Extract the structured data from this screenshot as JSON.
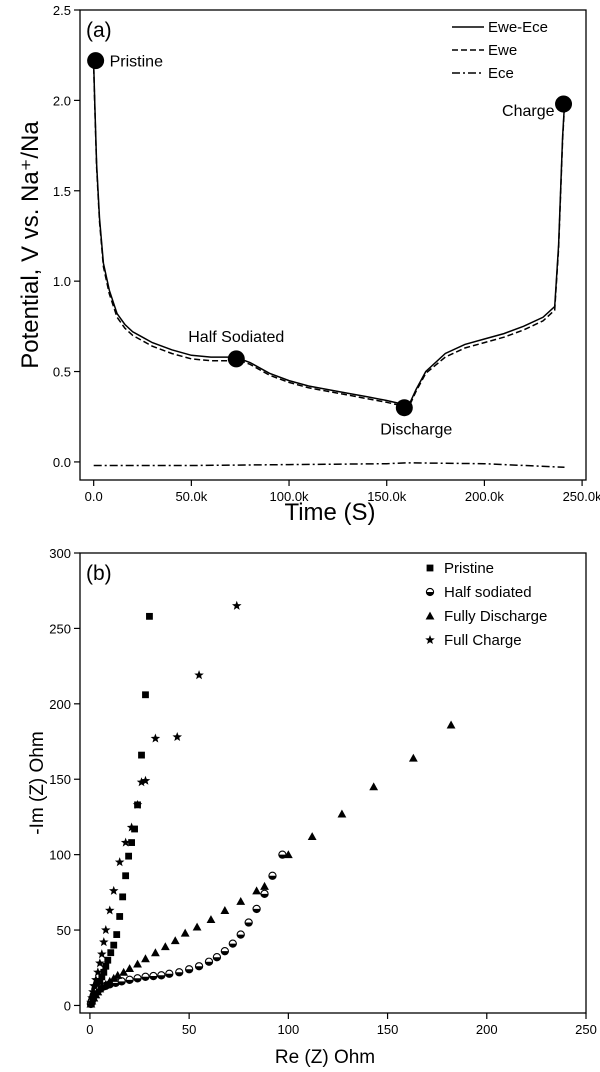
{
  "chart_data": [
    {
      "type": "line",
      "panel_label": "(a)",
      "xlabel": "Time  (S)",
      "ylabel": "Potential, V vs. Na⁺/Na",
      "xlim": [
        -7000,
        252000
      ],
      "ylim": [
        -0.1,
        2.5
      ],
      "xticks": [
        0,
        50000,
        100000,
        150000,
        200000,
        250000
      ],
      "xtick_labels": [
        "0.0",
        "50.0k",
        "100.0k",
        "150.0k",
        "200.0k",
        "250.0k"
      ],
      "yticks": [
        0.0,
        0.5,
        1.0,
        1.5,
        2.0,
        2.5
      ],
      "ytick_labels": [
        "0.0",
        "0.5",
        "1.0",
        "1.5",
        "2.0",
        "2.5"
      ],
      "legend_position": "top-right",
      "series": [
        {
          "name": "Ewe-Ece",
          "style": "solid",
          "x": [
            0,
            500,
            1500,
            3000,
            5000,
            8000,
            12000,
            16000,
            20000,
            25000,
            30000,
            40000,
            50000,
            60000,
            70000,
            75000,
            80000,
            90000,
            100000,
            110000,
            120000,
            130000,
            140000,
            150000,
            158000,
            160000,
            162000,
            165000,
            170000,
            180000,
            190000,
            200000,
            210000,
            220000,
            230000,
            236000,
            238000,
            239000,
            240000,
            241000
          ],
          "y": [
            2.2,
            2.0,
            1.65,
            1.35,
            1.1,
            0.95,
            0.82,
            0.76,
            0.72,
            0.69,
            0.66,
            0.62,
            0.59,
            0.58,
            0.58,
            0.57,
            0.55,
            0.49,
            0.45,
            0.42,
            0.4,
            0.38,
            0.36,
            0.34,
            0.32,
            0.31,
            0.33,
            0.4,
            0.5,
            0.6,
            0.65,
            0.68,
            0.71,
            0.75,
            0.8,
            0.86,
            1.2,
            1.5,
            1.8,
            1.98
          ]
        },
        {
          "name": "Ewe",
          "style": "dashed",
          "x": [
            0,
            500,
            1500,
            3000,
            5000,
            8000,
            12000,
            16000,
            20000,
            25000,
            30000,
            40000,
            50000,
            60000,
            70000,
            75000,
            80000,
            90000,
            100000,
            110000,
            120000,
            130000,
            140000,
            150000,
            158000,
            160000,
            162000,
            165000,
            170000,
            180000,
            190000,
            200000,
            210000,
            220000,
            230000,
            236000,
            238000,
            239000,
            240000,
            241000
          ],
          "y": [
            2.18,
            1.98,
            1.63,
            1.33,
            1.08,
            0.93,
            0.8,
            0.74,
            0.7,
            0.67,
            0.64,
            0.6,
            0.57,
            0.56,
            0.56,
            0.56,
            0.54,
            0.48,
            0.44,
            0.41,
            0.39,
            0.37,
            0.35,
            0.33,
            0.31,
            0.3,
            0.32,
            0.39,
            0.49,
            0.58,
            0.63,
            0.66,
            0.69,
            0.73,
            0.78,
            0.84,
            1.18,
            1.48,
            1.78,
            1.97
          ]
        },
        {
          "name": "Ece",
          "style": "dash-dot",
          "x": [
            0,
            50000,
            100000,
            150000,
            160000,
            200000,
            241000
          ],
          "y": [
            -0.02,
            -0.02,
            -0.015,
            -0.01,
            -0.005,
            -0.01,
            -0.03
          ]
        }
      ],
      "markers": [
        {
          "label": "Pristine",
          "x": 1000,
          "y": 2.22
        },
        {
          "label": "Half Sodiated",
          "x": 73000,
          "y": 0.57
        },
        {
          "label": "Discharge",
          "x": 159000,
          "y": 0.3
        },
        {
          "label": "Charge",
          "x": 240500,
          "y": 1.98
        }
      ]
    },
    {
      "type": "scatter",
      "panel_label": "(b)",
      "xlabel": "Re (Z) Ohm",
      "ylabel": "-Im (Z) Ohm",
      "xlim": [
        -5,
        250
      ],
      "ylim": [
        -5,
        300
      ],
      "xticks": [
        0,
        50,
        100,
        150,
        200,
        250
      ],
      "xtick_labels": [
        "0",
        "50",
        "100",
        "150",
        "200",
        "250"
      ],
      "yticks": [
        0,
        50,
        100,
        150,
        200,
        250,
        300
      ],
      "ytick_labels": [
        "0",
        "50",
        "100",
        "150",
        "200",
        "250",
        "300"
      ],
      "legend_position": "top-right",
      "series": [
        {
          "name": "Pristine",
          "marker": "square",
          "x": [
            0.5,
            1,
            1.5,
            2,
            2.5,
            3,
            4,
            5,
            6,
            7,
            8,
            9,
            10.5,
            12,
            13.5,
            15,
            16.5,
            18,
            19.5,
            21,
            22.5,
            24,
            26,
            28,
            30
          ],
          "y": [
            1,
            3,
            5,
            7,
            9,
            11,
            13.5,
            16,
            19,
            22,
            26,
            30,
            35,
            40,
            47,
            59,
            72,
            86,
            99,
            108,
            117,
            133,
            166,
            206,
            258
          ]
        },
        {
          "name": "Half sodiated",
          "marker": "circle-half",
          "x": [
            0.5,
            1,
            1.5,
            2,
            3,
            4,
            5,
            6,
            8,
            10,
            13,
            16,
            20,
            24,
            28,
            32,
            36,
            40,
            45,
            50,
            55,
            60,
            64,
            68,
            72,
            76,
            80,
            84,
            88,
            92,
            97
          ],
          "y": [
            1,
            3,
            5,
            7,
            8.5,
            10,
            11,
            12,
            13,
            14,
            15,
            16,
            17,
            18,
            19,
            19.5,
            20,
            21,
            22,
            24,
            26,
            29,
            32,
            36,
            41,
            47,
            55,
            64,
            74,
            86,
            100
          ]
        },
        {
          "name": "Fully Discharge",
          "marker": "triangle",
          "x": [
            0.5,
            1,
            2,
            3,
            4,
            5,
            6,
            8,
            10,
            12,
            14,
            17,
            20,
            24,
            28,
            33,
            38,
            43,
            48,
            54,
            61,
            68,
            76,
            84,
            88,
            100,
            112,
            127,
            143,
            163,
            182
          ],
          "y": [
            1,
            3,
            5,
            7,
            9,
            11,
            12.5,
            14,
            16,
            18,
            20,
            22,
            24.5,
            27.5,
            31,
            35,
            39,
            43,
            48,
            52,
            57,
            63,
            69,
            76,
            79,
            100,
            112,
            127,
            145,
            164,
            186
          ]
        },
        {
          "name": "Full Charge",
          "marker": "star",
          "x": [
            0.5,
            1,
            1.5,
            2,
            3,
            4,
            5,
            6,
            7,
            8,
            10,
            12,
            15,
            18,
            21,
            24,
            26,
            28,
            33,
            44,
            55,
            74
          ],
          "y": [
            2,
            5,
            9,
            13,
            17,
            22,
            28,
            34,
            42,
            50,
            63,
            76,
            95,
            108,
            118,
            133,
            148,
            149,
            177,
            178,
            219,
            265
          ]
        }
      ]
    }
  ]
}
